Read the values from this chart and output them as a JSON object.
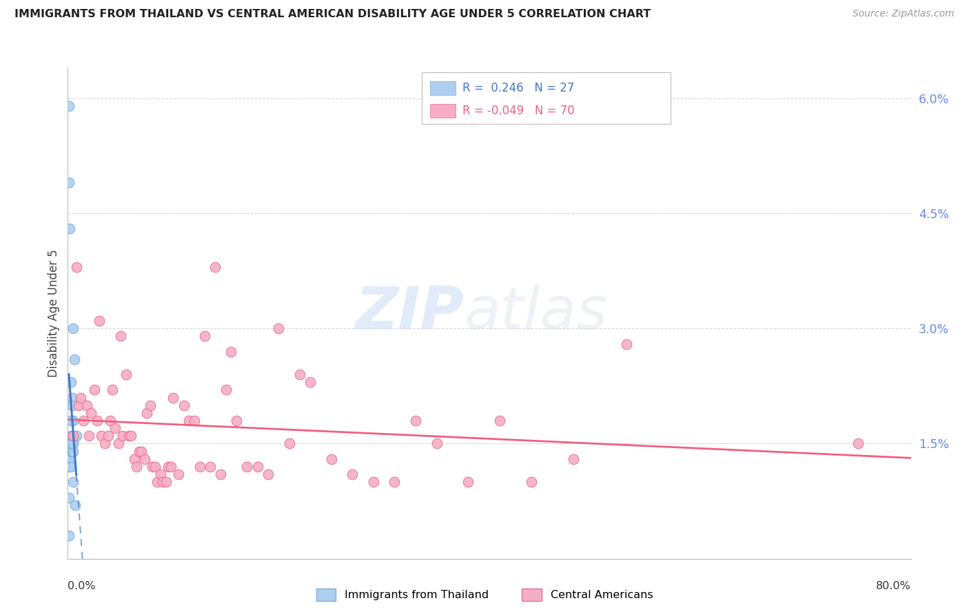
{
  "title": "IMMIGRANTS FROM THAILAND VS CENTRAL AMERICAN DISABILITY AGE UNDER 5 CORRELATION CHART",
  "source": "Source: ZipAtlas.com",
  "ylabel": "Disability Age Under 5",
  "watermark_zip": "ZIP",
  "watermark_atlas": "atlas",
  "right_yticks": [
    0.0,
    0.015,
    0.03,
    0.045,
    0.06
  ],
  "xlim": [
    0.0,
    0.8
  ],
  "ylim": [
    0.0,
    0.064
  ],
  "legend_r_thailand": " 0.246",
  "legend_n_thailand": "27",
  "legend_r_central": "-0.049",
  "legend_n_central": "70",
  "thailand_color": "#aecff0",
  "thailand_edge": "#7bafd4",
  "central_color": "#f5aec5",
  "central_edge": "#e87090",
  "thailand_line_color": "#4477cc",
  "central_line_color": "#f06080",
  "grid_color": "#cccccc",
  "title_color": "#222222",
  "right_axis_color": "#6688ee",
  "thailand_scatter_x": [
    0.001,
    0.001,
    0.001,
    0.001,
    0.002,
    0.002,
    0.002,
    0.002,
    0.003,
    0.003,
    0.003,
    0.003,
    0.003,
    0.004,
    0.004,
    0.004,
    0.004,
    0.005,
    0.005,
    0.005,
    0.005,
    0.005,
    0.006,
    0.007,
    0.003,
    0.004,
    0.008
  ],
  "thailand_scatter_y": [
    0.059,
    0.049,
    0.008,
    0.003,
    0.043,
    0.013,
    0.013,
    0.012,
    0.023,
    0.016,
    0.015,
    0.014,
    0.012,
    0.021,
    0.02,
    0.016,
    0.014,
    0.03,
    0.018,
    0.015,
    0.014,
    0.01,
    0.026,
    0.007,
    0.018,
    0.015,
    0.016
  ],
  "central_scatter_x": [
    0.005,
    0.008,
    0.01,
    0.012,
    0.015,
    0.018,
    0.02,
    0.022,
    0.025,
    0.028,
    0.03,
    0.032,
    0.035,
    0.038,
    0.04,
    0.042,
    0.045,
    0.048,
    0.05,
    0.052,
    0.055,
    0.058,
    0.06,
    0.063,
    0.065,
    0.068,
    0.07,
    0.073,
    0.075,
    0.078,
    0.08,
    0.083,
    0.085,
    0.088,
    0.09,
    0.093,
    0.095,
    0.098,
    0.1,
    0.105,
    0.11,
    0.115,
    0.12,
    0.125,
    0.13,
    0.135,
    0.14,
    0.145,
    0.15,
    0.155,
    0.16,
    0.17,
    0.18,
    0.19,
    0.2,
    0.21,
    0.22,
    0.23,
    0.25,
    0.27,
    0.29,
    0.31,
    0.33,
    0.35,
    0.38,
    0.41,
    0.44,
    0.48,
    0.53,
    0.75
  ],
  "central_scatter_y": [
    0.016,
    0.038,
    0.02,
    0.021,
    0.018,
    0.02,
    0.016,
    0.019,
    0.022,
    0.018,
    0.031,
    0.016,
    0.015,
    0.016,
    0.018,
    0.022,
    0.017,
    0.015,
    0.029,
    0.016,
    0.024,
    0.016,
    0.016,
    0.013,
    0.012,
    0.014,
    0.014,
    0.013,
    0.019,
    0.02,
    0.012,
    0.012,
    0.01,
    0.011,
    0.01,
    0.01,
    0.012,
    0.012,
    0.021,
    0.011,
    0.02,
    0.018,
    0.018,
    0.012,
    0.029,
    0.012,
    0.038,
    0.011,
    0.022,
    0.027,
    0.018,
    0.012,
    0.012,
    0.011,
    0.03,
    0.015,
    0.024,
    0.023,
    0.013,
    0.011,
    0.01,
    0.01,
    0.018,
    0.015,
    0.01,
    0.018,
    0.01,
    0.013,
    0.028,
    0.015
  ]
}
